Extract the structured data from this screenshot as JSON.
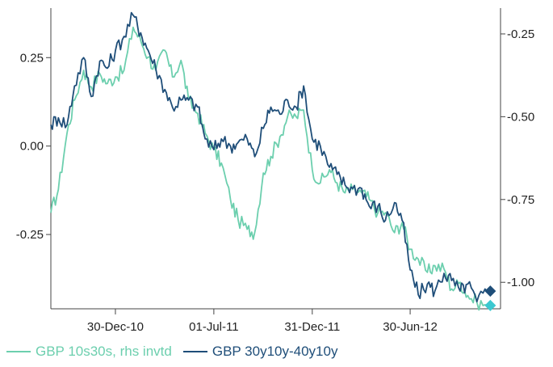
{
  "chart_data": {
    "type": "line",
    "title": "",
    "x_ticks": [
      "30-Dec-10",
      "01-Jul-11",
      "31-Dec-11",
      "30-Jun-12"
    ],
    "x_range": [
      "2010-09-01",
      "2012-12-15"
    ],
    "left_axis": {
      "ticks": [
        "0.25",
        "0.00",
        "-0.25"
      ],
      "ylim": [
        -0.46,
        0.39
      ]
    },
    "right_axis": {
      "ticks": [
        "-0.25",
        "-0.50",
        "-0.75",
        "-1.00"
      ],
      "ylim": [
        -0.172,
        -1.08
      ],
      "inverted": true
    },
    "series": [
      {
        "name": "GBP 10s30s, rhs invtd",
        "axis": "right",
        "color": "#6ccfae",
        "end_marker": {
          "shape": "diamond",
          "value": -1.07
        },
        "points": [
          [
            "2010-09-01",
            -0.79
          ],
          [
            "2010-09-15",
            -0.72
          ],
          [
            "2010-10-01",
            -0.55
          ],
          [
            "2010-10-15",
            -0.45
          ],
          [
            "2010-11-01",
            -0.36
          ],
          [
            "2010-11-15",
            -0.41
          ],
          [
            "2010-12-01",
            -0.37
          ],
          [
            "2010-12-15",
            -0.4
          ],
          [
            "2010-12-30",
            -0.38
          ],
          [
            "2011-01-15",
            -0.36
          ],
          [
            "2011-02-01",
            -0.23
          ],
          [
            "2011-02-15",
            -0.27
          ],
          [
            "2011-03-01",
            -0.32
          ],
          [
            "2011-03-15",
            -0.36
          ],
          [
            "2011-04-01",
            -0.3
          ],
          [
            "2011-04-15",
            -0.38
          ],
          [
            "2011-05-01",
            -0.33
          ],
          [
            "2011-05-15",
            -0.45
          ],
          [
            "2011-06-01",
            -0.49
          ],
          [
            "2011-06-15",
            -0.55
          ],
          [
            "2011-07-01",
            -0.6
          ],
          [
            "2011-07-15",
            -0.64
          ],
          [
            "2011-08-01",
            -0.75
          ],
          [
            "2011-08-15",
            -0.81
          ],
          [
            "2011-09-01",
            -0.84
          ],
          [
            "2011-09-15",
            -0.85
          ],
          [
            "2011-10-01",
            -0.67
          ],
          [
            "2011-10-15",
            -0.62
          ],
          [
            "2011-11-01",
            -0.56
          ],
          [
            "2011-11-15",
            -0.5
          ],
          [
            "2011-12-01",
            -0.5
          ],
          [
            "2011-12-15",
            -0.48
          ],
          [
            "2011-12-31",
            -0.66
          ],
          [
            "2012-01-15",
            -0.7
          ],
          [
            "2012-02-01",
            -0.66
          ],
          [
            "2012-02-15",
            -0.7
          ],
          [
            "2012-03-01",
            -0.73
          ],
          [
            "2012-03-15",
            -0.72
          ],
          [
            "2012-04-01",
            -0.73
          ],
          [
            "2012-04-15",
            -0.75
          ],
          [
            "2012-05-01",
            -0.79
          ],
          [
            "2012-05-15",
            -0.79
          ],
          [
            "2012-06-01",
            -0.85
          ],
          [
            "2012-06-15",
            -0.82
          ],
          [
            "2012-06-30",
            -0.9
          ],
          [
            "2012-07-15",
            -0.93
          ],
          [
            "2012-08-01",
            -0.97
          ],
          [
            "2012-08-15",
            -0.95
          ],
          [
            "2012-09-01",
            -0.96
          ],
          [
            "2012-09-15",
            -1.02
          ],
          [
            "2012-10-01",
            -1.0
          ],
          [
            "2012-10-15",
            -1.04
          ],
          [
            "2012-11-01",
            -1.06
          ],
          [
            "2012-11-20",
            -1.07
          ]
        ]
      },
      {
        "name": "GBP 30y10y-40y10y",
        "axis": "left",
        "color": "#1f4e79",
        "end_marker": {
          "shape": "diamond",
          "value": -0.41
        },
        "points": [
          [
            "2010-09-01",
            0.06
          ],
          [
            "2010-09-15",
            0.08
          ],
          [
            "2010-10-01",
            0.06
          ],
          [
            "2010-10-15",
            0.17
          ],
          [
            "2010-11-01",
            0.25
          ],
          [
            "2010-11-15",
            0.14
          ],
          [
            "2010-12-01",
            0.24
          ],
          [
            "2010-12-15",
            0.22
          ],
          [
            "2010-12-30",
            0.27
          ],
          [
            "2011-01-15",
            0.31
          ],
          [
            "2011-02-01",
            0.37
          ],
          [
            "2011-02-15",
            0.32
          ],
          [
            "2011-03-01",
            0.27
          ],
          [
            "2011-03-15",
            0.22
          ],
          [
            "2011-04-01",
            0.16
          ],
          [
            "2011-04-15",
            0.11
          ],
          [
            "2011-05-01",
            0.13
          ],
          [
            "2011-05-15",
            0.13
          ],
          [
            "2011-06-01",
            0.11
          ],
          [
            "2011-06-15",
            0.02
          ],
          [
            "2011-07-01",
            -0.01
          ],
          [
            "2011-07-15",
            0.02
          ],
          [
            "2011-08-01",
            0.0
          ],
          [
            "2011-08-15",
            0.01
          ],
          [
            "2011-09-01",
            0.02
          ],
          [
            "2011-09-15",
            -0.03
          ],
          [
            "2011-10-01",
            0.05
          ],
          [
            "2011-10-15",
            0.11
          ],
          [
            "2011-11-01",
            0.09
          ],
          [
            "2011-11-15",
            0.13
          ],
          [
            "2011-12-01",
            0.11
          ],
          [
            "2011-12-15",
            0.17
          ],
          [
            "2011-12-31",
            0.02
          ],
          [
            "2012-01-15",
            0.0
          ],
          [
            "2012-02-01",
            -0.06
          ],
          [
            "2012-02-15",
            -0.08
          ],
          [
            "2012-03-01",
            -0.11
          ],
          [
            "2012-03-15",
            -0.12
          ],
          [
            "2012-04-01",
            -0.12
          ],
          [
            "2012-04-15",
            -0.17
          ],
          [
            "2012-05-01",
            -0.17
          ],
          [
            "2012-05-15",
            -0.21
          ],
          [
            "2012-06-01",
            -0.16
          ],
          [
            "2012-06-15",
            -0.21
          ],
          [
            "2012-06-30",
            -0.35
          ],
          [
            "2012-07-15",
            -0.42
          ],
          [
            "2012-08-01",
            -0.39
          ],
          [
            "2012-08-15",
            -0.41
          ],
          [
            "2012-09-01",
            -0.36
          ],
          [
            "2012-09-15",
            -0.38
          ],
          [
            "2012-10-01",
            -0.41
          ],
          [
            "2012-10-15",
            -0.39
          ],
          [
            "2012-11-01",
            -0.44
          ],
          [
            "2012-11-20",
            -0.41
          ]
        ]
      }
    ]
  }
}
